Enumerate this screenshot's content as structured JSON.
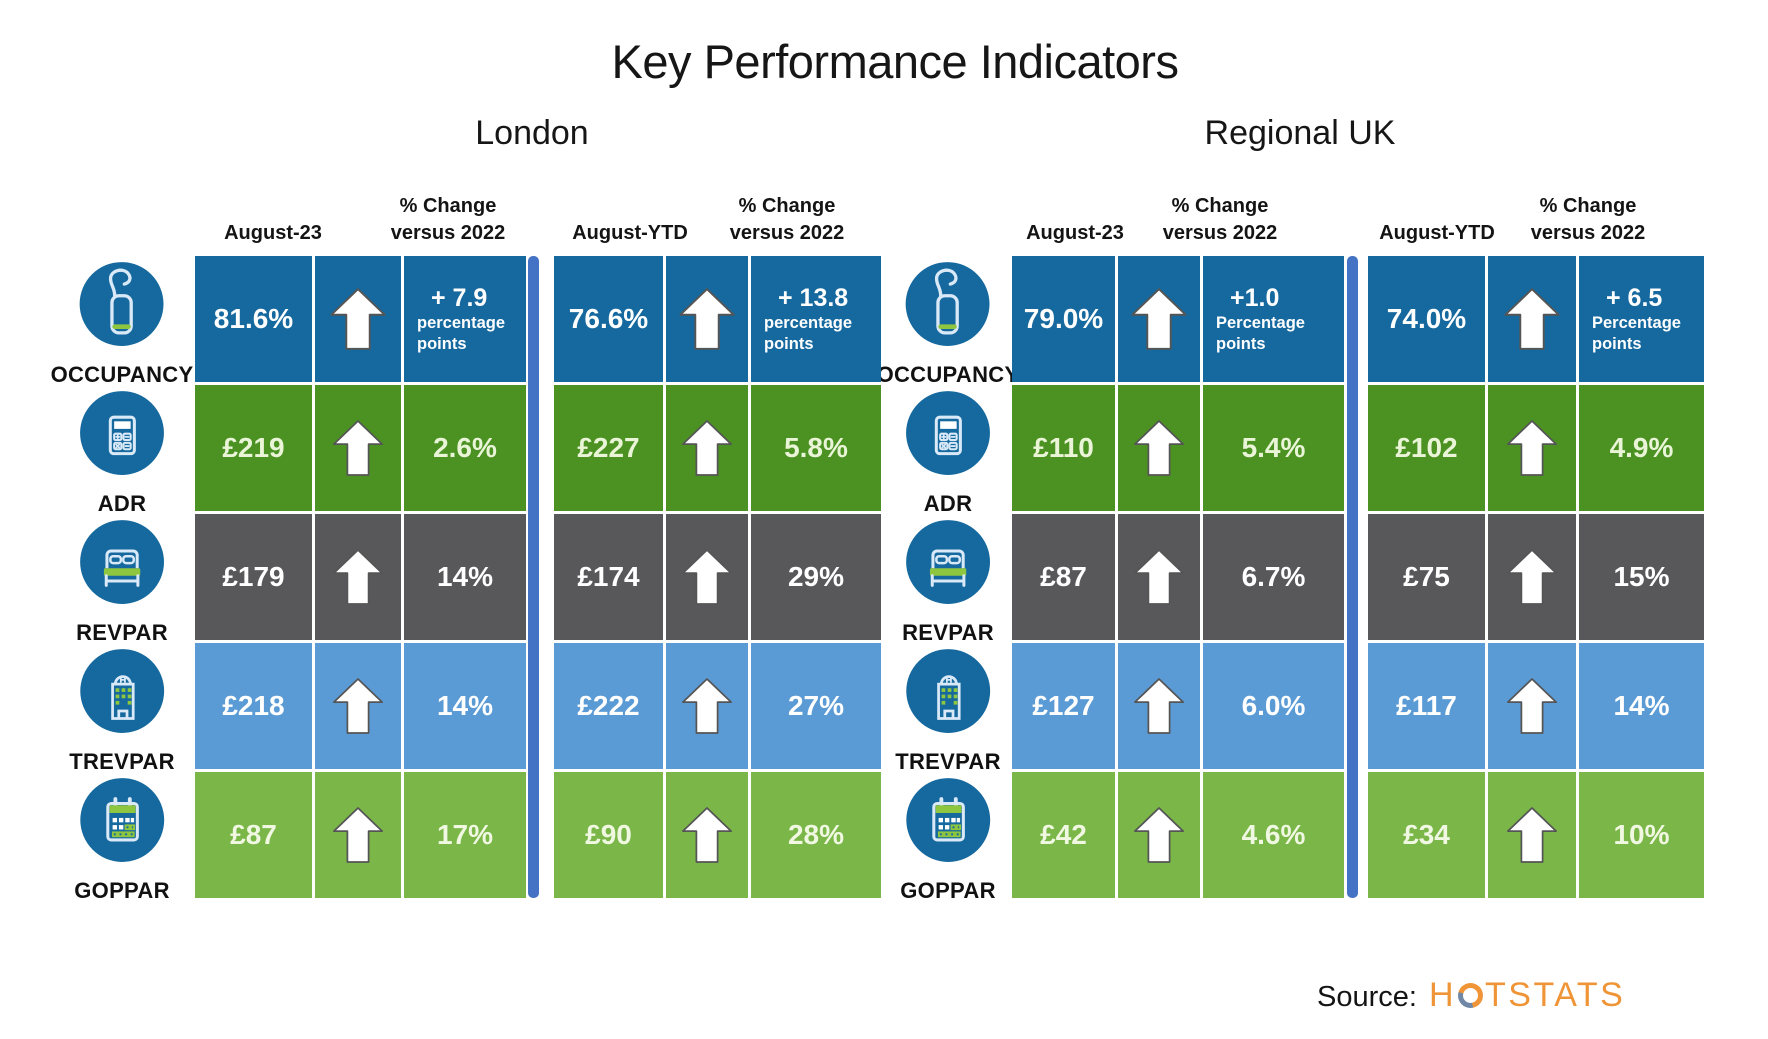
{
  "title": "Key Performance Indicators",
  "source": {
    "label": "Source:",
    "brand": "HOTSTATS"
  },
  "palette": {
    "icon_bg": "#16699E",
    "icon_stroke": "#D9E9F8",
    "icon_accent": "#8FC640",
    "divider": "#4472C4",
    "brand_orange": "#EF9537",
    "brand_slate": "#7087A6",
    "rows": [
      {
        "bg": "#16699E",
        "text": "#FFFFFF"
      },
      {
        "bg": "#4B9223",
        "text": "#EAF5D8"
      },
      {
        "bg": "#58585A",
        "text": "#FFFFFF"
      },
      {
        "bg": "#5B9BD5",
        "text": "#FFFFFF"
      },
      {
        "bg": "#7AB648",
        "text": "#F0F8E2"
      }
    ]
  },
  "metrics": [
    {
      "key": "occupancy",
      "label": "OCCUPANCY"
    },
    {
      "key": "adr",
      "label": "ADR"
    },
    {
      "key": "revpar",
      "label": "REVPAR"
    },
    {
      "key": "trevpar",
      "label": "TREVPAR"
    },
    {
      "key": "goppar",
      "label": "GOPPAR"
    }
  ],
  "sections": [
    {
      "name": "London",
      "tables": [
        {
          "period": "August-23",
          "change_header": [
            "% Change",
            "versus 2022"
          ],
          "rows": [
            {
              "value": "81.6%",
              "change": "+ 7.9",
              "change_sub": "percentage points"
            },
            {
              "value": "£219",
              "change": "2.6%"
            },
            {
              "value": "£179",
              "change": "14%"
            },
            {
              "value": "£218",
              "change": "14%"
            },
            {
              "value": "£87",
              "change": "17%"
            }
          ]
        },
        {
          "period": "August-YTD",
          "change_header": [
            "% Change",
            "versus 2022"
          ],
          "rows": [
            {
              "value": "76.6%",
              "change": "+ 13.8",
              "change_sub": "percentage points"
            },
            {
              "value": "£227",
              "change": "5.8%"
            },
            {
              "value": "£174",
              "change": "29%"
            },
            {
              "value": "£222",
              "change": "27%"
            },
            {
              "value": "£90",
              "change": "28%"
            }
          ]
        }
      ]
    },
    {
      "name": "Regional UK",
      "tables": [
        {
          "period": "August-23",
          "change_header": [
            "% Change",
            "versus 2022"
          ],
          "rows": [
            {
              "value": "79.0%",
              "change": "+1.0",
              "change_sub": "Percentage points"
            },
            {
              "value": "£110",
              "change": "5.4%"
            },
            {
              "value": "£87",
              "change": "6.7%"
            },
            {
              "value": "£127",
              "change": "6.0%"
            },
            {
              "value": "£42",
              "change": "4.6%"
            }
          ]
        },
        {
          "period": "August-YTD",
          "change_header": [
            "% Change",
            "versus 2022"
          ],
          "rows": [
            {
              "value": "74.0%",
              "change": "+ 6.5",
              "change_sub": "Percentage points"
            },
            {
              "value": "£102",
              "change": "4.9%"
            },
            {
              "value": "£75",
              "change": "15%"
            },
            {
              "value": "£117",
              "change": "14%"
            },
            {
              "value": "£34",
              "change": "10%"
            }
          ]
        }
      ]
    }
  ],
  "chart_data": {
    "type": "table",
    "title": "Key Performance Indicators",
    "row_labels": [
      "OCCUPANCY",
      "ADR",
      "REVPAR",
      "TREVPAR",
      "GOPPAR"
    ],
    "series": [
      {
        "name": "London August-23",
        "values": [
          "81.6%",
          "£219",
          "£179",
          "£218",
          "£87"
        ],
        "change_vs_2022": [
          "+7.9 pp",
          "2.6%",
          "14%",
          "14%",
          "17%"
        ]
      },
      {
        "name": "London August-YTD",
        "values": [
          "76.6%",
          "£227",
          "£174",
          "£222",
          "£90"
        ],
        "change_vs_2022": [
          "+13.8 pp",
          "5.8%",
          "29%",
          "27%",
          "28%"
        ]
      },
      {
        "name": "Regional UK August-23",
        "values": [
          "79.0%",
          "£110",
          "£87",
          "£127",
          "£42"
        ],
        "change_vs_2022": [
          "+1.0 pp",
          "5.4%",
          "6.7%",
          "6.0%",
          "4.6%"
        ]
      },
      {
        "name": "Regional UK August-YTD",
        "values": [
          "74.0%",
          "£102",
          "£75",
          "£117",
          "£34"
        ],
        "change_vs_2022": [
          "+6.5 pp",
          "4.9%",
          "15%",
          "14%",
          "10%"
        ]
      }
    ],
    "legend_position": "none",
    "grid": false,
    "source": "HOTSTATS"
  }
}
